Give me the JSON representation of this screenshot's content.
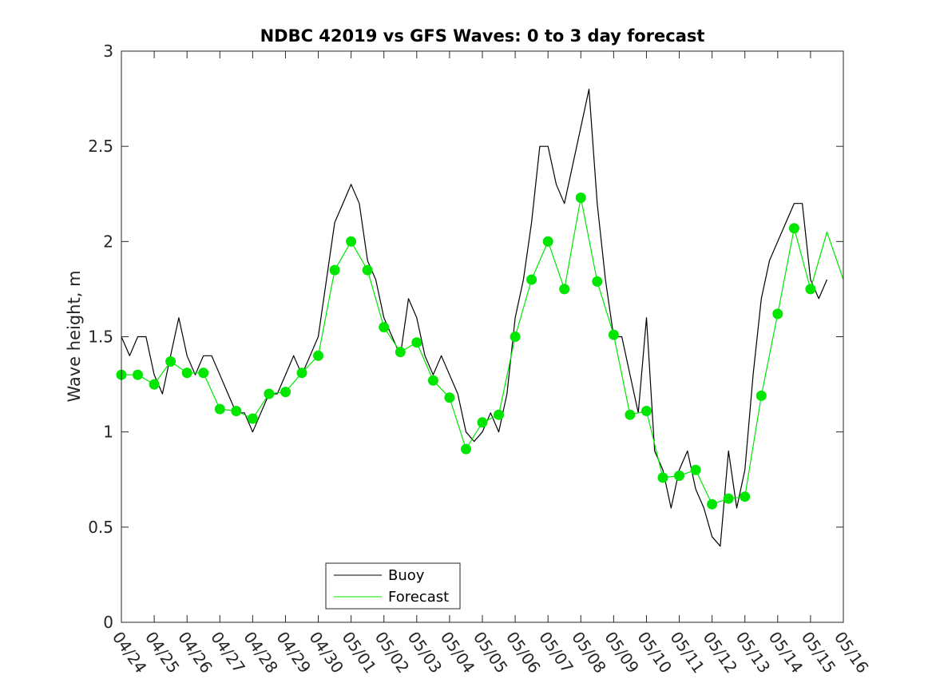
{
  "chart_data": {
    "type": "line",
    "title": "NDBC 42019 vs GFS Waves: 0 to 3 day forecast",
    "xlabel": "",
    "ylabel": "Wave height, m",
    "xlim": [
      "04/24",
      "05/16"
    ],
    "ylim": [
      0,
      3
    ],
    "x_tick_labels": [
      "04/24",
      "04/25",
      "04/26",
      "04/27",
      "04/28",
      "04/29",
      "04/30",
      "05/01",
      "05/02",
      "05/03",
      "05/04",
      "05/05",
      "05/06",
      "05/07",
      "05/08",
      "05/09",
      "05/10",
      "05/11",
      "05/12",
      "05/13",
      "05/14",
      "05/15",
      "05/16"
    ],
    "y_tick_labels": [
      "0",
      "0.5",
      "1",
      "1.5",
      "2",
      "2.5",
      "3"
    ],
    "y_ticks": [
      0,
      0.5,
      1,
      1.5,
      2,
      2.5,
      3
    ],
    "grid": false,
    "legend_position": "bottom-center",
    "colors": {
      "buoy": "#000000",
      "forecast": "#00e600",
      "axis": "#262626"
    },
    "series": [
      {
        "name": "Buoy",
        "style": "line",
        "x": [
          "04/24 00:00",
          "04/24 06:00",
          "04/24 12:00",
          "04/24 18:00",
          "04/25 00:00",
          "04/25 06:00",
          "04/25 12:00",
          "04/25 18:00",
          "04/26 00:00",
          "04/26 06:00",
          "04/26 12:00",
          "04/26 18:00",
          "04/27 00:00",
          "04/27 06:00",
          "04/27 12:00",
          "04/27 18:00",
          "04/28 00:00",
          "04/28 06:00",
          "04/28 12:00",
          "04/28 18:00",
          "04/29 00:00",
          "04/29 06:00",
          "04/29 12:00",
          "04/29 18:00",
          "04/30 00:00",
          "04/30 06:00",
          "04/30 12:00",
          "04/30 18:00",
          "05/01 00:00",
          "05/01 06:00",
          "05/01 12:00",
          "05/01 18:00",
          "05/02 00:00",
          "05/02 06:00",
          "05/02 12:00",
          "05/02 18:00",
          "05/03 00:00",
          "05/03 06:00",
          "05/03 12:00",
          "05/03 18:00",
          "05/04 00:00",
          "05/04 06:00",
          "05/04 12:00",
          "05/04 18:00",
          "05/05 00:00",
          "05/05 06:00",
          "05/05 12:00",
          "05/05 18:00",
          "05/06 00:00",
          "05/06 06:00",
          "05/06 12:00",
          "05/06 18:00",
          "05/07 00:00",
          "05/07 06:00",
          "05/07 12:00",
          "05/07 18:00",
          "05/08 00:00",
          "05/08 06:00",
          "05/08 12:00",
          "05/08 18:00",
          "05/09 00:00",
          "05/09 06:00",
          "05/09 12:00",
          "05/09 18:00",
          "05/10 00:00",
          "05/10 06:00",
          "05/10 12:00",
          "05/10 18:00",
          "05/11 00:00",
          "05/11 06:00",
          "05/11 12:00",
          "05/11 18:00",
          "05/12 00:00",
          "05/12 06:00",
          "05/12 12:00",
          "05/12 18:00",
          "05/13 00:00",
          "05/13 06:00",
          "05/13 12:00",
          "05/13 18:00",
          "05/14 00:00",
          "05/14 06:00",
          "05/14 12:00",
          "05/14 18:00",
          "05/15 00:00",
          "05/15 06:00",
          "05/15 12:00"
        ],
        "values": [
          1.5,
          1.4,
          1.5,
          1.5,
          1.3,
          1.2,
          1.4,
          1.6,
          1.4,
          1.3,
          1.4,
          1.4,
          1.3,
          1.2,
          1.1,
          1.1,
          1.0,
          1.1,
          1.2,
          1.2,
          1.3,
          1.4,
          1.3,
          1.4,
          1.5,
          1.8,
          2.1,
          2.2,
          2.3,
          2.2,
          1.9,
          1.8,
          1.6,
          1.5,
          1.4,
          1.7,
          1.6,
          1.4,
          1.3,
          1.4,
          1.3,
          1.2,
          1.0,
          0.95,
          1.0,
          1.1,
          1.0,
          1.2,
          1.6,
          1.8,
          2.1,
          2.5,
          2.5,
          2.3,
          2.2,
          2.4,
          2.6,
          2.8,
          2.2,
          1.8,
          1.5,
          1.5,
          1.3,
          1.1,
          1.6,
          0.9,
          0.8,
          0.6,
          0.8,
          0.9,
          0.7,
          0.6,
          0.45,
          0.4,
          0.9,
          0.6,
          0.8,
          1.3,
          1.7,
          1.9,
          2.0,
          2.1,
          2.2,
          2.2,
          1.8,
          1.7,
          1.8
        ]
      },
      {
        "name": "Forecast",
        "style": "line",
        "x": [
          "04/24 00:00",
          "04/24 12:00",
          "04/25 00:00",
          "04/25 12:00",
          "04/26 00:00",
          "04/26 12:00",
          "04/27 00:00",
          "04/27 12:00",
          "04/28 00:00",
          "04/28 12:00",
          "04/29 00:00",
          "04/29 12:00",
          "04/30 00:00",
          "04/30 12:00",
          "05/01 00:00",
          "05/01 12:00",
          "05/02 00:00",
          "05/02 12:00",
          "05/03 00:00",
          "05/03 12:00",
          "05/04 00:00",
          "05/04 12:00",
          "05/05 00:00",
          "05/05 12:00",
          "05/06 00:00",
          "05/06 12:00",
          "05/07 00:00",
          "05/07 12:00",
          "05/08 00:00",
          "05/08 12:00",
          "05/09 00:00",
          "05/09 12:00",
          "05/10 00:00",
          "05/10 12:00",
          "05/11 00:00",
          "05/11 12:00",
          "05/12 00:00",
          "05/12 12:00",
          "05/13 00:00",
          "05/13 12:00",
          "05/14 00:00",
          "05/14 12:00",
          "05/15 00:00",
          "05/15 12:00",
          "05/16 00:00"
        ],
        "values": [
          1.3,
          1.3,
          1.25,
          1.37,
          1.31,
          1.31,
          1.12,
          1.11,
          1.07,
          1.2,
          1.21,
          1.31,
          1.4,
          1.85,
          2.0,
          1.85,
          1.55,
          1.42,
          1.47,
          1.27,
          1.18,
          0.91,
          1.05,
          1.09,
          1.5,
          1.8,
          2.0,
          1.75,
          2.23,
          1.79,
          1.51,
          1.09,
          1.11,
          0.76,
          0.77,
          0.8,
          0.62,
          0.65,
          0.66,
          1.19,
          1.62,
          2.07,
          1.75,
          2.05,
          1.8
        ],
        "markers": {
          "x": [
            "04/24 00:00",
            "04/24 12:00",
            "04/25 00:00",
            "04/25 12:00",
            "04/26 00:00",
            "04/26 12:00",
            "04/27 00:00",
            "04/27 12:00",
            "04/28 00:00",
            "04/28 12:00",
            "04/29 00:00",
            "04/29 12:00",
            "04/30 00:00",
            "04/30 12:00",
            "05/01 00:00",
            "05/01 12:00",
            "05/02 00:00",
            "05/02 12:00",
            "05/03 00:00",
            "05/03 12:00",
            "05/04 00:00",
            "05/04 12:00",
            "05/05 00:00",
            "05/05 12:00",
            "05/06 00:00",
            "05/06 12:00",
            "05/07 00:00",
            "05/07 12:00",
            "05/08 00:00",
            "05/08 12:00",
            "05/09 00:00",
            "05/09 12:00",
            "05/10 00:00",
            "05/10 12:00",
            "05/11 00:00",
            "05/11 12:00",
            "05/12 00:00",
            "05/12 12:00",
            "05/13 00:00",
            "05/13 12:00",
            "05/14 00:00",
            "05/14 12:00",
            "05/15 00:00"
          ],
          "values": [
            1.3,
            1.3,
            1.25,
            1.37,
            1.31,
            1.31,
            1.12,
            1.11,
            1.07,
            1.2,
            1.21,
            1.31,
            1.4,
            1.85,
            2.0,
            1.85,
            1.55,
            1.42,
            1.47,
            1.27,
            1.18,
            0.91,
            1.05,
            1.09,
            1.5,
            1.8,
            2.0,
            1.75,
            2.23,
            1.79,
            1.51,
            1.09,
            1.11,
            0.76,
            0.77,
            0.8,
            0.62,
            0.65,
            0.66,
            1.19,
            1.62,
            2.07,
            1.75
          ]
        }
      }
    ],
    "legend": [
      {
        "name": "Buoy",
        "color": "#000000"
      },
      {
        "name": "Forecast",
        "color": "#00e600"
      }
    ]
  }
}
